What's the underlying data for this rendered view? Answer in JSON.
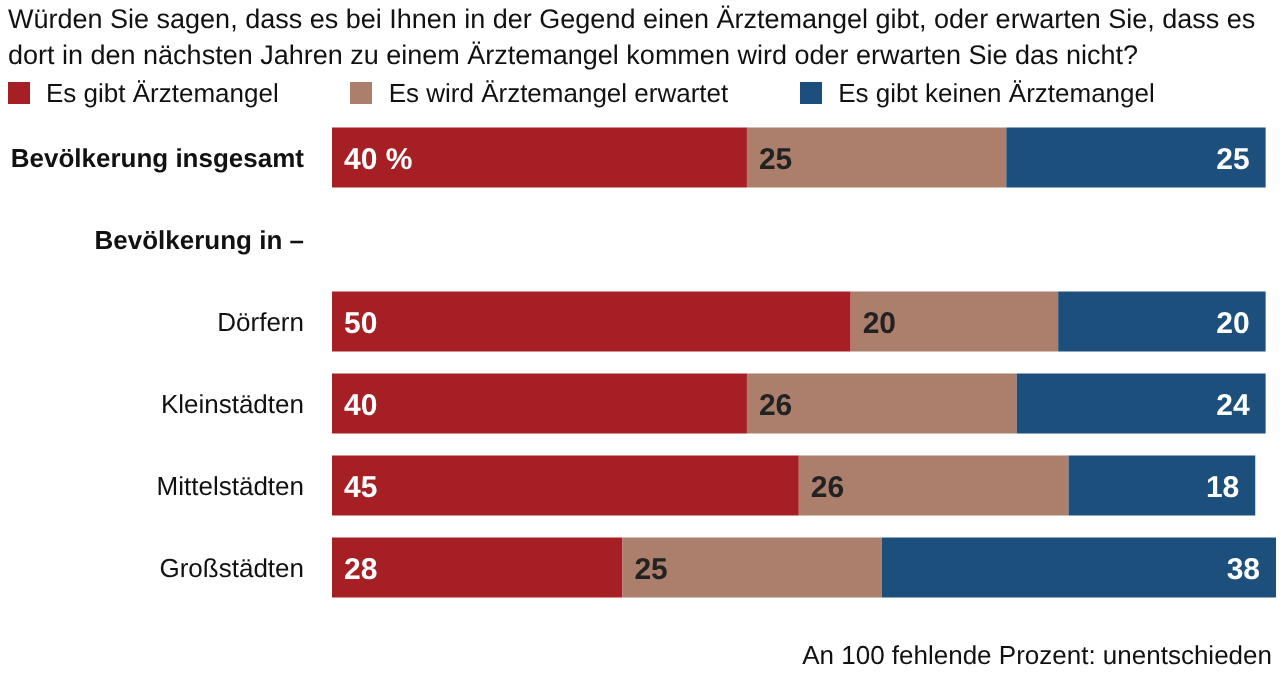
{
  "chart_data": {
    "type": "bar",
    "orientation": "horizontal",
    "stacked": true,
    "title": "Würden Sie sagen, dass es bei Ihnen in der Gegend einen Ärztemangel gibt, oder erwarten Sie, dass es dort in den nächsten Jahren zu einem Ärztemangel kommen wird oder erwarten Sie das nicht?",
    "categories": [
      "Bevölkerung insgesamt",
      "Bevölkerung in –",
      "Dörfern",
      "Kleinstädten",
      "Mittelstädten",
      "Großstädten"
    ],
    "series": [
      {
        "name": "Es gibt Ärztemangel",
        "color": "#a51f24",
        "values": [
          40,
          null,
          50,
          40,
          45,
          28
        ],
        "value_labels": [
          "40 %",
          null,
          "50",
          "40",
          "45",
          "28"
        ]
      },
      {
        "name": "Es wird Ärztemangel erwartet",
        "color": "#ab7f6c",
        "values": [
          25,
          null,
          20,
          26,
          26,
          25
        ],
        "value_labels": [
          "25",
          null,
          "20",
          "26",
          "26",
          "25"
        ]
      },
      {
        "name": "Es gibt keinen Ärztemangel",
        "color": "#1d4f7d",
        "values": [
          25,
          null,
          20,
          24,
          18,
          38
        ],
        "value_labels": [
          "25",
          null,
          "20",
          "24",
          "18",
          "38"
        ]
      }
    ],
    "legend": "top left",
    "annotations": [
      "An 100 fehlende Prozent: unentschieden"
    ]
  }
}
